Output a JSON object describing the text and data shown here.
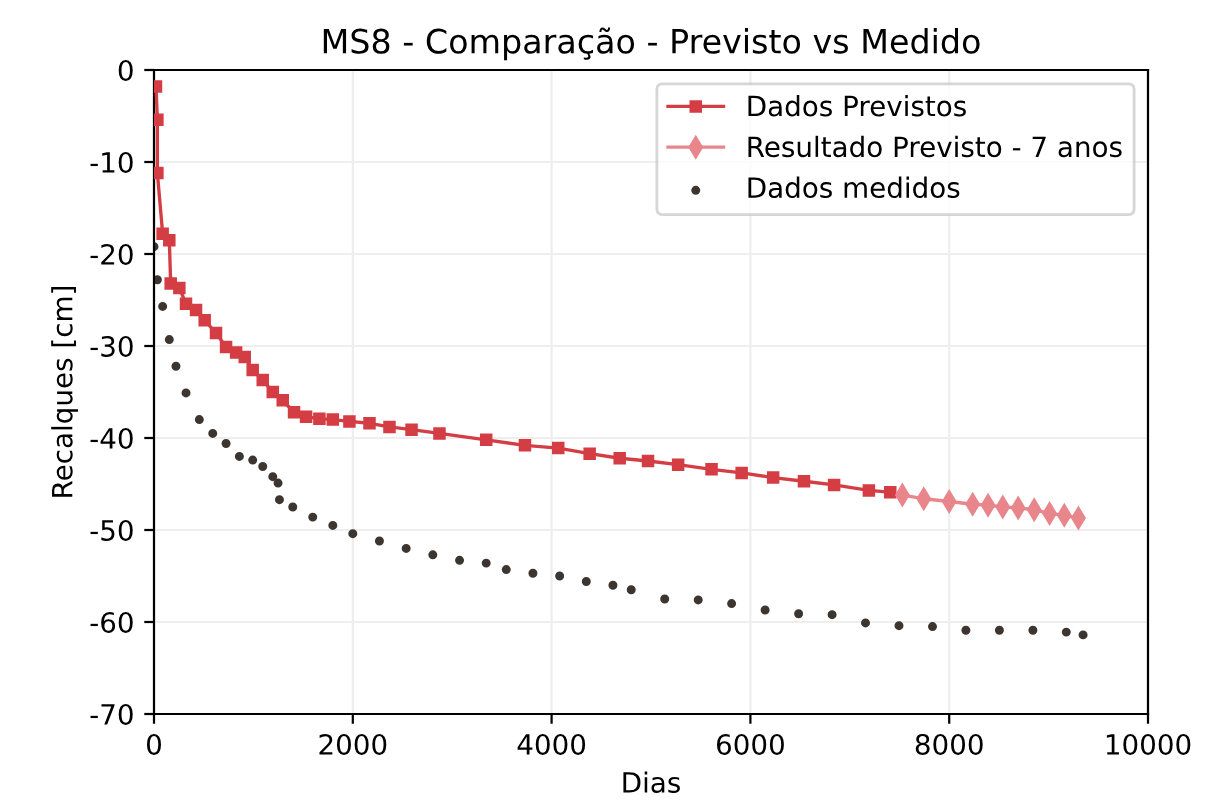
{
  "chart_data": {
    "type": "line",
    "title": "MS8 - Comparação - Previsto vs Medido",
    "xlabel": "Dias",
    "ylabel": "Recalques [cm]",
    "xlim": [
      0,
      10000
    ],
    "xticks": [
      0,
      2000,
      4000,
      6000,
      8000,
      10000
    ],
    "ylim": [
      -70,
      0
    ],
    "yticks": [
      -70,
      -60,
      -50,
      -40,
      -30,
      -20,
      -10,
      0
    ],
    "grid": true,
    "legend": "top right",
    "series": [
      {
        "name": "Dados Previstos",
        "marker": "square",
        "color": "#d43d44",
        "x": [
          20,
          34,
          34,
          87,
          154,
          168,
          255,
          322,
          423,
          510,
          624,
          725,
          826,
          913,
          993,
          1094,
          1195,
          1295,
          1409,
          1530,
          1664,
          1799,
          1966,
          2168,
          2369,
          2591,
          2872,
          3342,
          3732,
          4067,
          4383,
          4685,
          4970,
          5273,
          5609,
          5912,
          6229,
          6539,
          6842,
          7192,
          7407
        ],
        "values": [
          -1.8,
          -5.4,
          -11.2,
          -17.8,
          -18.5,
          -23.2,
          -23.7,
          -25.4,
          -26.1,
          -27.2,
          -28.6,
          -30.1,
          -30.7,
          -31.2,
          -32.6,
          -33.7,
          -35.0,
          -35.9,
          -37.2,
          -37.7,
          -37.9,
          -38.0,
          -38.2,
          -38.4,
          -38.8,
          -39.1,
          -39.5,
          -40.2,
          -40.8,
          -41.1,
          -41.7,
          -42.2,
          -42.5,
          -42.9,
          -43.4,
          -43.8,
          -44.3,
          -44.7,
          -45.1,
          -45.7,
          -45.9
        ]
      },
      {
        "name": "Resultado Previsto - 7 anos",
        "marker": "diamond",
        "color": "#e8868c",
        "x": [
          7529,
          7744,
          8000,
          8236,
          8391,
          8539,
          8694,
          8855,
          9010,
          9158,
          9300
        ],
        "values": [
          -46.2,
          -46.6,
          -46.9,
          -47.2,
          -47.3,
          -47.5,
          -47.6,
          -47.8,
          -48.2,
          -48.4,
          -48.7
        ]
      },
      {
        "name": "Dados medidos",
        "type": "scatter",
        "marker": "circle",
        "color": "#3d3530",
        "x": [
          0,
          34,
          87,
          154,
          221,
          322,
          456,
          591,
          725,
          859,
          993,
          1094,
          1195,
          1248,
          1262,
          1396,
          1597,
          1799,
          2000,
          2268,
          2537,
          2805,
          3074,
          3342,
          3544,
          3812,
          4081,
          4349,
          4617,
          4801,
          5138,
          5475,
          5811,
          6148,
          6485,
          6822,
          7158,
          7495,
          7832,
          8168,
          8505,
          8842,
          9178,
          9347
        ],
        "values": [
          -19.2,
          -22.8,
          -25.7,
          -29.3,
          -32.2,
          -35.1,
          -38.0,
          -39.5,
          -40.6,
          -42.0,
          -42.4,
          -43.1,
          -44.2,
          -44.9,
          -46.7,
          -47.5,
          -48.6,
          -49.5,
          -50.4,
          -51.2,
          -52.0,
          -52.7,
          -53.3,
          -53.6,
          -54.3,
          -54.7,
          -55.0,
          -55.6,
          -56.0,
          -56.5,
          -57.5,
          -57.6,
          -58.0,
          -58.7,
          -59.1,
          -59.2,
          -60.1,
          -60.4,
          -60.5,
          -60.9,
          -60.9,
          -60.9,
          -61.1,
          -61.4
        ]
      }
    ]
  }
}
